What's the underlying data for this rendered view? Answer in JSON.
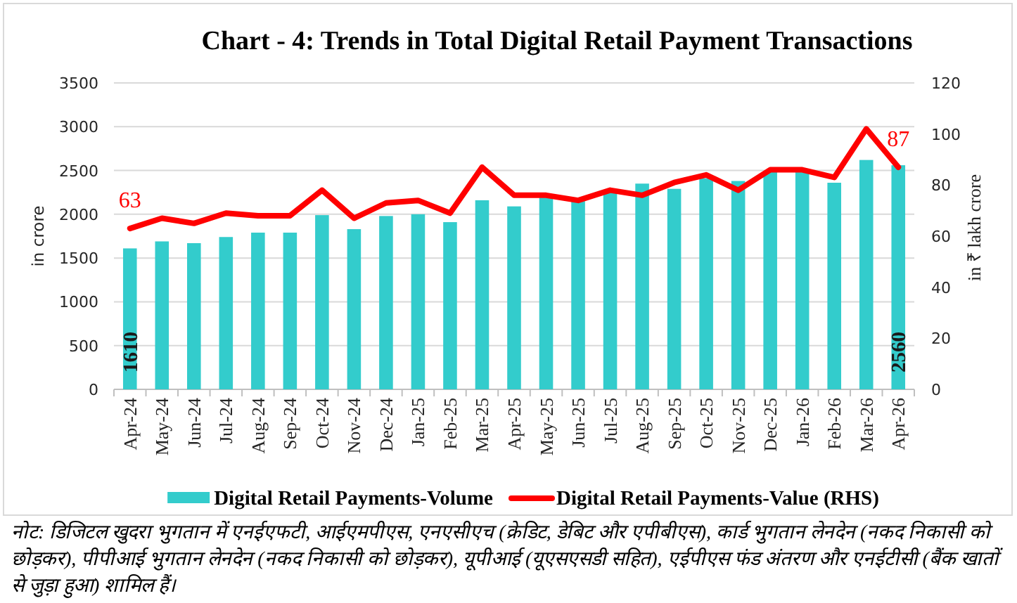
{
  "chart_data": {
    "type": "bar",
    "title": "Chart - 4: Trends in Total Digital Retail Payment Transactions",
    "ylabel": "in crore",
    "y2label": "in ₹ lakh crore",
    "categories": [
      "Apr-24",
      "May-24",
      "Jun-24",
      "Jul-24",
      "Aug-24",
      "Sep-24",
      "Oct-24",
      "Nov-24",
      "Dec-24",
      "Jan-25",
      "Feb-25",
      "Mar-25",
      "Apr-25",
      "May-25",
      "Jun-25",
      "Jul-25",
      "Aug-25",
      "Sep-25",
      "Oct-25",
      "Nov-25",
      "Dec-25",
      "Jan-26",
      "Feb-26",
      "Mar-26",
      "Apr-26"
    ],
    "series": [
      {
        "name": "Digital Retail Payments-Volume",
        "color": "#33cccc",
        "values": [
          1610,
          1690,
          1670,
          1740,
          1790,
          1790,
          1990,
          1830,
          1980,
          2000,
          1910,
          2160,
          2090,
          2190,
          2150,
          2250,
          2350,
          2290,
          2410,
          2380,
          2490,
          2480,
          2360,
          2620,
          2560
        ],
        "value_labels": [
          "1610",
          null,
          null,
          null,
          null,
          null,
          null,
          null,
          null,
          null,
          null,
          null,
          null,
          null,
          null,
          null,
          null,
          null,
          null,
          null,
          null,
          null,
          null,
          null,
          "2560"
        ]
      },
      {
        "name": "Digital Retail Payments-Value (RHS)",
        "type": "line",
        "axis": "y2",
        "color": "#ff0000",
        "values": [
          63,
          67,
          65,
          69,
          68,
          68,
          78,
          67,
          73,
          74,
          69,
          87,
          76,
          76,
          74,
          78,
          76,
          81,
          84,
          78,
          86,
          86,
          83,
          102,
          87
        ],
        "value_labels": [
          "63",
          null,
          null,
          null,
          null,
          null,
          null,
          null,
          null,
          null,
          null,
          null,
          null,
          null,
          null,
          null,
          null,
          null,
          null,
          null,
          null,
          null,
          null,
          null,
          "87"
        ]
      }
    ],
    "ylim": [
      0,
      3500
    ],
    "yticks": [
      0,
      500,
      1000,
      1500,
      2000,
      2500,
      3000,
      3500
    ],
    "y2lim": [
      0,
      120
    ],
    "y2ticks": [
      0,
      20,
      40,
      60,
      80,
      100,
      120
    ],
    "grid": "y",
    "legend": "bottom",
    "annotations": [
      "नोट: डिजिटल खुदरा भुगतान में एनईएफटी, आईएमपीएस, एनएसीएच (क्रेडिट, डेबिट और एपीबीएस), कार्ड भुगतान लेनदेन (नकद निकासी को छोड़कर), पीपीआई भुगतान लेनदेन (नकद निकासी को छोड़कर), यूपीआई (यूएसएसडी सहित), एईपीएस फंड अंतरण और एनईटीसी (बैंक खातों से जुड़ा हुआ) शामिल हैं।"
    ]
  }
}
